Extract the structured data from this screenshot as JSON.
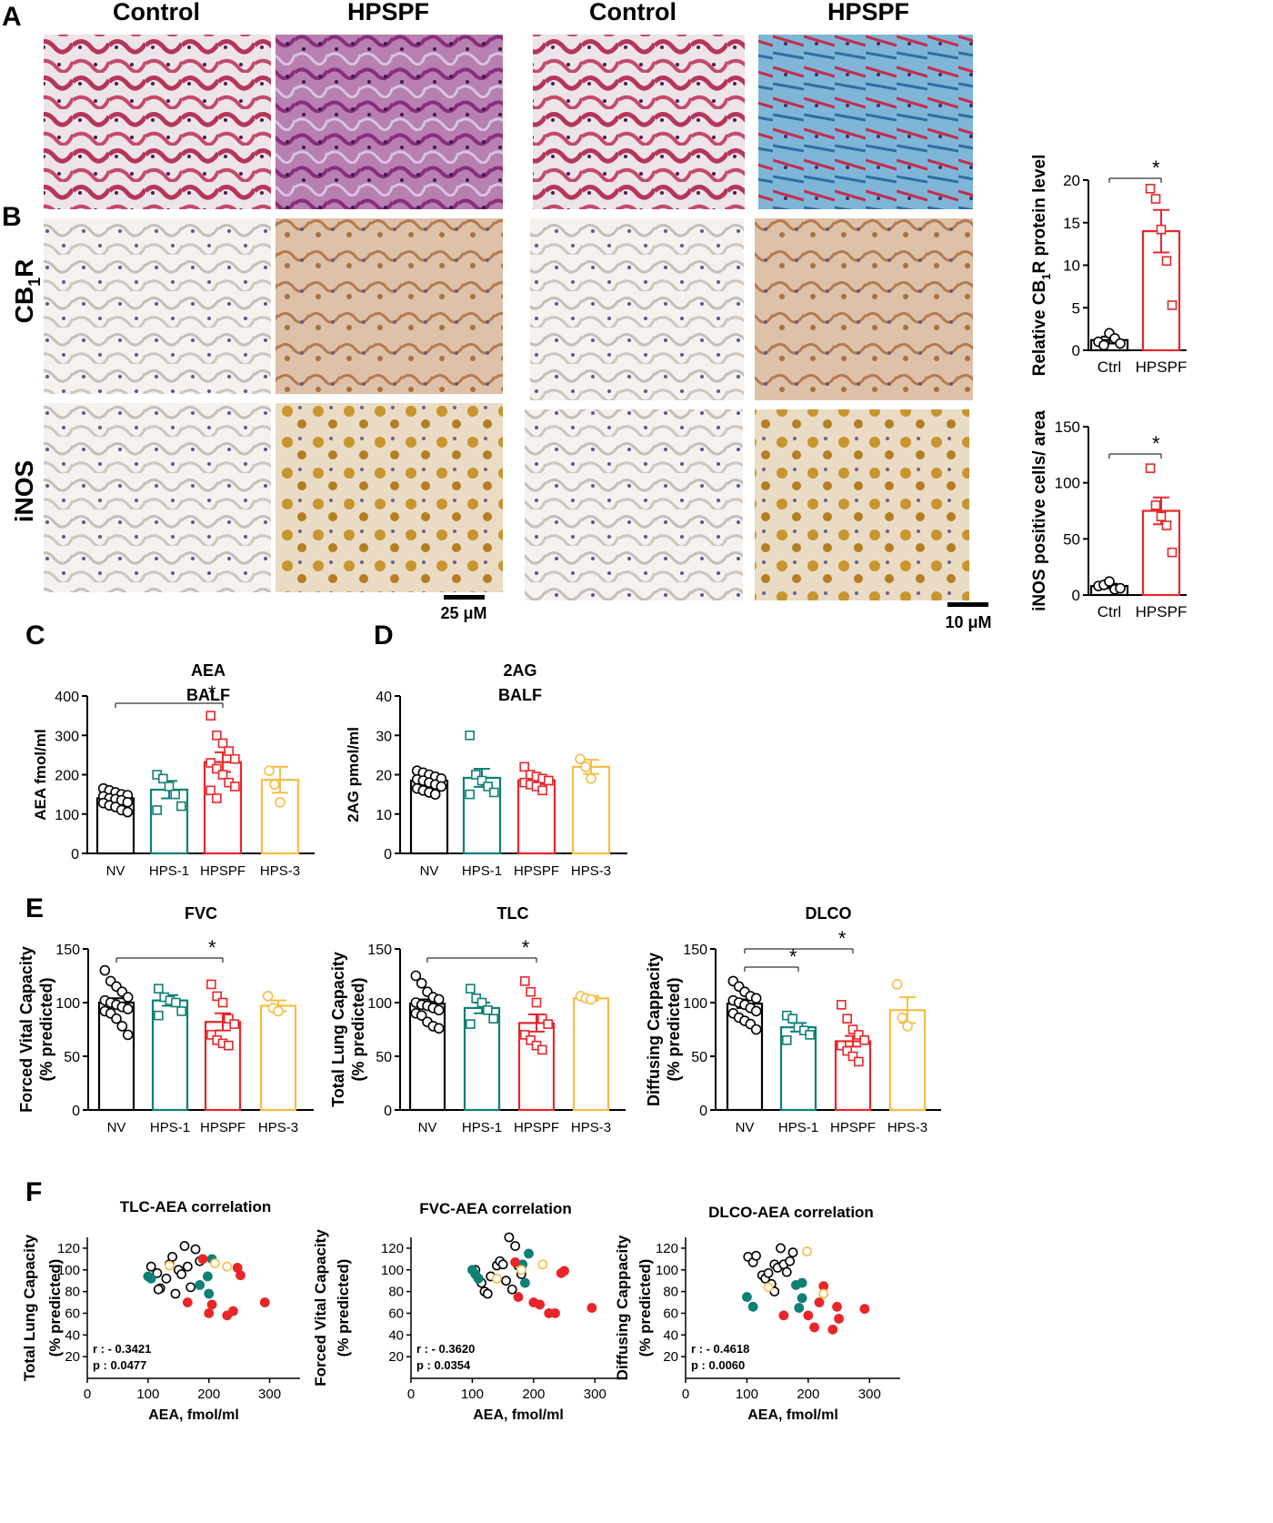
{
  "colors": {
    "NV": "#000000",
    "HPS-1": "#0e8076",
    "HPSPF": "#e8262a",
    "HPS-3": "#f6bd45",
    "HPSPF_sig": "#e8262a"
  },
  "panelA": {
    "letter": "A",
    "col_headers": [
      "Control",
      "HPSPF",
      "Control",
      "HPSPF"
    ],
    "scale_bars": [
      "25 μM",
      "10 μM"
    ]
  },
  "panelB": {
    "letter": "B",
    "rows": [
      "CB",
      "iNOS"
    ],
    "cb_sub": "1",
    "cb_suffix": "R"
  },
  "chart_data": [
    {
      "id": "cb1r",
      "type": "bar",
      "ylabel": "Relative CB1R protein level",
      "categories": [
        "Ctrl",
        "HPSPF"
      ],
      "ylim": [
        0,
        20
      ],
      "yticks": [
        0,
        5,
        10,
        15,
        20
      ],
      "values": [
        1.2,
        14.0
      ],
      "sem": [
        0.4,
        2.5
      ],
      "points": [
        [
          1.0,
          0.6,
          2.0,
          1.4,
          0.8
        ],
        [
          19.0,
          17.8,
          14.2,
          10.5,
          5.3
        ]
      ],
      "significance": [
        {
          "from": 0,
          "to": 1,
          "label": "*"
        }
      ]
    },
    {
      "id": "inos",
      "type": "bar",
      "ylabel": "iNOS positive cells/ area",
      "categories": [
        "Ctrl",
        "HPSPF"
      ],
      "ylim": [
        0,
        150
      ],
      "yticks": [
        0,
        50,
        100,
        150
      ],
      "values": [
        8,
        75
      ],
      "sem": [
        2,
        12
      ],
      "points": [
        [
          8,
          9,
          12,
          5,
          6
        ],
        [
          113,
          80,
          70,
          62,
          38
        ]
      ],
      "significance": [
        {
          "from": 0,
          "to": 1,
          "label": "*"
        }
      ]
    },
    {
      "id": "aea",
      "type": "bar",
      "letter": "C",
      "title": [
        "AEA",
        "BALF"
      ],
      "ylabel": "AEA fmol/ml",
      "categories": [
        "NV",
        "HPS-1",
        "HPSPF",
        "HPS-3"
      ],
      "ylim": [
        0,
        400
      ],
      "yticks": [
        0,
        100,
        200,
        300,
        400
      ],
      "values": [
        140,
        162,
        232,
        187
      ],
      "sem": [
        7,
        22,
        25,
        33
      ],
      "points": [
        [
          165,
          160,
          155,
          150,
          148,
          145,
          140,
          138,
          135,
          130,
          128,
          122,
          118,
          110,
          105
        ],
        [
          200,
          190,
          170,
          150,
          120,
          110
        ],
        [
          350,
          300,
          280,
          260,
          240,
          230,
          215,
          200,
          180,
          170,
          160,
          140
        ],
        [
          210,
          175,
          130
        ]
      ],
      "significance": [
        {
          "from": 0,
          "to": 2,
          "label": "*"
        }
      ]
    },
    {
      "id": "2ag",
      "type": "bar",
      "letter": "D",
      "title": [
        "2AG",
        "BALF"
      ],
      "ylabel": "2AG pmol/ml",
      "categories": [
        "NV",
        "HPS-1",
        "HPSPF",
        "HPS-3"
      ],
      "ylim": [
        0,
        40
      ],
      "yticks": [
        0,
        10,
        20,
        30,
        40
      ],
      "values": [
        18.5,
        19.2,
        18.6,
        22.0
      ],
      "sem": [
        0.8,
        2.3,
        1.0,
        1.8
      ],
      "points": [
        [
          21,
          20.5,
          20,
          19.5,
          19,
          18.8,
          18.5,
          18,
          17.5,
          17,
          16.5,
          16,
          15.5,
          15
        ],
        [
          30,
          20,
          18.5,
          17,
          15.5,
          15
        ],
        [
          22,
          20,
          19.5,
          19,
          18.5,
          18,
          17.5,
          17,
          16
        ],
        [
          24,
          22,
          19
        ]
      ],
      "significance": []
    },
    {
      "id": "fvc",
      "type": "bar",
      "letter": "E",
      "title": [
        "FVC"
      ],
      "ylabel": [
        "Forced Vital Capacity",
        "(% predicted)"
      ],
      "categories": [
        "NV",
        "HPS-1",
        "HPSPF",
        "HPS-3"
      ],
      "ylim": [
        0,
        150
      ],
      "yticks": [
        0,
        50,
        100,
        150
      ],
      "values": [
        100,
        102,
        82,
        97
      ],
      "sem": [
        4,
        5,
        8,
        5
      ],
      "points": [
        [
          130,
          120,
          115,
          110,
          105,
          102,
          100,
          98,
          96,
          94,
          92,
          90,
          85,
          78,
          70
        ],
        [
          113,
          105,
          102,
          100,
          92,
          88
        ],
        [
          117,
          106,
          100,
          85,
          80,
          70,
          65,
          62,
          60
        ],
        [
          106,
          95,
          92
        ]
      ],
      "significance": [
        {
          "from": 0,
          "to": 2,
          "label": "*"
        }
      ]
    },
    {
      "id": "tlc",
      "type": "bar",
      "title": [
        "TLC"
      ],
      "ylabel": [
        "Total Lung Capacity",
        "(% predicted)"
      ],
      "categories": [
        "NV",
        "HPS-1",
        "HPSPF",
        "HPS-3"
      ],
      "ylim": [
        0,
        150
      ],
      "yticks": [
        0,
        50,
        100,
        150
      ],
      "values": [
        99,
        95,
        81,
        104
      ],
      "sem": [
        4,
        5,
        8,
        2
      ],
      "points": [
        [
          125,
          118,
          110,
          105,
          103,
          100,
          98,
          97,
          95,
          93,
          90,
          88,
          82,
          78,
          76
        ],
        [
          113,
          104,
          100,
          93,
          85,
          80
        ],
        [
          120,
          110,
          100,
          85,
          80,
          70,
          65,
          60,
          56
        ],
        [
          106,
          104,
          103
        ]
      ],
      "significance": [
        {
          "from": 0,
          "to": 2,
          "label": "*"
        }
      ]
    },
    {
      "id": "dlco",
      "type": "bar",
      "title": [
        "DLCO"
      ],
      "ylabel": [
        "Diffusing Cappacity",
        "(% predicted)"
      ],
      "categories": [
        "NV",
        "HPS-1",
        "HPSPF",
        "HPS-3"
      ],
      "ylim": [
        0,
        150
      ],
      "yticks": [
        0,
        50,
        100,
        150
      ],
      "values": [
        99,
        77,
        64,
        93
      ],
      "sem": [
        4,
        4,
        5,
        12
      ],
      "points": [
        [
          120,
          115,
          110,
          106,
          104,
          102,
          100,
          98,
          95,
          92,
          90,
          86,
          83,
          80,
          75
        ],
        [
          88,
          85,
          77,
          74,
          70,
          65
        ],
        [
          98,
          85,
          75,
          70,
          65,
          60,
          55,
          50,
          45
        ],
        [
          117,
          86,
          78
        ]
      ],
      "significance": [
        {
          "from": 0,
          "to": 1,
          "label": "*"
        },
        {
          "from": 0,
          "to": 2,
          "label": "*"
        }
      ]
    },
    {
      "id": "tlc_aea",
      "type": "scatter",
      "letter": "F",
      "title": [
        "TLC-AEA correlation"
      ],
      "ylabel": [
        "Total Lung Capacity",
        "(% predicted)"
      ],
      "xlabel": "AEA, fmol/ml",
      "xlim": [
        0,
        350
      ],
      "xticks": [
        0,
        100,
        200,
        300
      ],
      "ylim": [
        0,
        130
      ],
      "yticks": [
        20,
        40,
        60,
        80,
        100,
        120
      ],
      "annotation": [
        "r : - 0.3421",
        "p : 0.0477"
      ],
      "points": [
        {
          "g": "NV",
          "x": 105,
          "y": 103
        },
        {
          "g": "NV",
          "x": 115,
          "y": 97
        },
        {
          "g": "NV",
          "x": 120,
          "y": 83
        },
        {
          "g": "NV",
          "x": 130,
          "y": 92
        },
        {
          "g": "NV",
          "x": 135,
          "y": 105
        },
        {
          "g": "NV",
          "x": 140,
          "y": 112
        },
        {
          "g": "NV",
          "x": 150,
          "y": 100
        },
        {
          "g": "NV",
          "x": 155,
          "y": 96
        },
        {
          "g": "NV",
          "x": 160,
          "y": 122
        },
        {
          "g": "NV",
          "x": 165,
          "y": 103
        },
        {
          "g": "NV",
          "x": 170,
          "y": 84
        },
        {
          "g": "NV",
          "x": 178,
          "y": 119
        },
        {
          "g": "NV",
          "x": 185,
          "y": 108
        },
        {
          "g": "NV",
          "x": 117,
          "y": 82
        },
        {
          "g": "NV",
          "x": 145,
          "y": 78
        },
        {
          "g": "HPS-1",
          "x": 100,
          "y": 94
        },
        {
          "g": "HPS-1",
          "x": 105,
          "y": 92
        },
        {
          "g": "HPS-1",
          "x": 185,
          "y": 86
        },
        {
          "g": "HPS-1",
          "x": 198,
          "y": 94
        },
        {
          "g": "HPS-1",
          "x": 200,
          "y": 78
        },
        {
          "g": "HPS-1",
          "x": 205,
          "y": 110
        },
        {
          "g": "HPSPF",
          "x": 165,
          "y": 70
        },
        {
          "g": "HPSPF",
          "x": 190,
          "y": 110
        },
        {
          "g": "HPSPF",
          "x": 200,
          "y": 60
        },
        {
          "g": "HPSPF",
          "x": 205,
          "y": 68
        },
        {
          "g": "HPSPF",
          "x": 230,
          "y": 58
        },
        {
          "g": "HPSPF",
          "x": 240,
          "y": 62
        },
        {
          "g": "HPSPF",
          "x": 247,
          "y": 102
        },
        {
          "g": "HPSPF",
          "x": 252,
          "y": 95
        },
        {
          "g": "HPSPF",
          "x": 292,
          "y": 70
        },
        {
          "g": "HPS-3",
          "x": 135,
          "y": 104
        },
        {
          "g": "HPS-3",
          "x": 210,
          "y": 106
        },
        {
          "g": "HPS-3",
          "x": 230,
          "y": 103
        }
      ]
    },
    {
      "id": "fvc_aea",
      "type": "scatter",
      "title": [
        "FVC-AEA correlation"
      ],
      "ylabel": [
        "Forced Vital Capacity",
        "(% predicted)"
      ],
      "xlabel": "AEA, fmol/ml",
      "xlim": [
        0,
        350
      ],
      "xticks": [
        0,
        100,
        200,
        300
      ],
      "ylim": [
        0,
        130
      ],
      "yticks": [
        20,
        40,
        60,
        80,
        100,
        120
      ],
      "annotation": [
        "r : - 0.3620",
        "p : 0.0354"
      ],
      "points": [
        {
          "g": "NV",
          "x": 105,
          "y": 100
        },
        {
          "g": "NV",
          "x": 110,
          "y": 92
        },
        {
          "g": "NV",
          "x": 115,
          "y": 88
        },
        {
          "g": "NV",
          "x": 120,
          "y": 80
        },
        {
          "g": "NV",
          "x": 130,
          "y": 94
        },
        {
          "g": "NV",
          "x": 140,
          "y": 104
        },
        {
          "g": "NV",
          "x": 145,
          "y": 108
        },
        {
          "g": "NV",
          "x": 150,
          "y": 105
        },
        {
          "g": "NV",
          "x": 155,
          "y": 90
        },
        {
          "g": "NV",
          "x": 160,
          "y": 130
        },
        {
          "g": "NV",
          "x": 165,
          "y": 82
        },
        {
          "g": "NV",
          "x": 170,
          "y": 122
        },
        {
          "g": "NV",
          "x": 175,
          "y": 104
        },
        {
          "g": "NV",
          "x": 180,
          "y": 96
        },
        {
          "g": "NV",
          "x": 125,
          "y": 78
        },
        {
          "g": "HPS-1",
          "x": 100,
          "y": 100
        },
        {
          "g": "HPS-1",
          "x": 105,
          "y": 96
        },
        {
          "g": "HPS-1",
          "x": 110,
          "y": 92
        },
        {
          "g": "HPS-1",
          "x": 182,
          "y": 105
        },
        {
          "g": "HPS-1",
          "x": 186,
          "y": 88
        },
        {
          "g": "HPS-1",
          "x": 192,
          "y": 115
        },
        {
          "g": "HPSPF",
          "x": 170,
          "y": 107
        },
        {
          "g": "HPSPF",
          "x": 175,
          "y": 75
        },
        {
          "g": "HPSPF",
          "x": 200,
          "y": 70
        },
        {
          "g": "HPSPF",
          "x": 210,
          "y": 68
        },
        {
          "g": "HPSPF",
          "x": 225,
          "y": 60
        },
        {
          "g": "HPSPF",
          "x": 235,
          "y": 60
        },
        {
          "g": "HPSPF",
          "x": 245,
          "y": 97
        },
        {
          "g": "HPSPF",
          "x": 250,
          "y": 99
        },
        {
          "g": "HPSPF",
          "x": 295,
          "y": 65
        },
        {
          "g": "HPS-3",
          "x": 140,
          "y": 92
        },
        {
          "g": "HPS-3",
          "x": 215,
          "y": 105
        },
        {
          "g": "HPS-3",
          "x": 180,
          "y": 100
        }
      ]
    },
    {
      "id": "dlco_aea",
      "type": "scatter",
      "title": [
        "DLCO-AEA correlation"
      ],
      "ylabel": [
        "Diffusing Cappacity",
        "(% predicted)"
      ],
      "xlabel": "AEA, fmol/ml",
      "xlim": [
        0,
        350
      ],
      "xticks": [
        0,
        100,
        200,
        300
      ],
      "ylim": [
        0,
        130
      ],
      "yticks": [
        20,
        40,
        60,
        80,
        100,
        120
      ],
      "annotation": [
        "r : - 0.4618",
        "p : 0.0060"
      ],
      "points": [
        {
          "g": "NV",
          "x": 102,
          "y": 112
        },
        {
          "g": "NV",
          "x": 110,
          "y": 107
        },
        {
          "g": "NV",
          "x": 115,
          "y": 113
        },
        {
          "g": "NV",
          "x": 125,
          "y": 95
        },
        {
          "g": "NV",
          "x": 130,
          "y": 92
        },
        {
          "g": "NV",
          "x": 140,
          "y": 87
        },
        {
          "g": "NV",
          "x": 145,
          "y": 105
        },
        {
          "g": "NV",
          "x": 150,
          "y": 102
        },
        {
          "g": "NV",
          "x": 155,
          "y": 120
        },
        {
          "g": "NV",
          "x": 160,
          "y": 105
        },
        {
          "g": "NV",
          "x": 165,
          "y": 98
        },
        {
          "g": "NV",
          "x": 170,
          "y": 108
        },
        {
          "g": "NV",
          "x": 175,
          "y": 116
        },
        {
          "g": "NV",
          "x": 145,
          "y": 80
        },
        {
          "g": "NV",
          "x": 135,
          "y": 97
        },
        {
          "g": "HPS-1",
          "x": 100,
          "y": 75
        },
        {
          "g": "HPS-1",
          "x": 110,
          "y": 66
        },
        {
          "g": "HPS-1",
          "x": 180,
          "y": 86
        },
        {
          "g": "HPS-1",
          "x": 190,
          "y": 88
        },
        {
          "g": "HPS-1",
          "x": 190,
          "y": 74
        },
        {
          "g": "HPS-1",
          "x": 185,
          "y": 65
        },
        {
          "g": "HPSPF",
          "x": 160,
          "y": 58
        },
        {
          "g": "HPSPF",
          "x": 200,
          "y": 58
        },
        {
          "g": "HPSPF",
          "x": 210,
          "y": 47
        },
        {
          "g": "HPSPF",
          "x": 218,
          "y": 70
        },
        {
          "g": "HPSPF",
          "x": 225,
          "y": 85
        },
        {
          "g": "HPSPF",
          "x": 240,
          "y": 45
        },
        {
          "g": "HPSPF",
          "x": 247,
          "y": 66
        },
        {
          "g": "HPSPF",
          "x": 250,
          "y": 55
        },
        {
          "g": "HPSPF",
          "x": 292,
          "y": 64
        },
        {
          "g": "HPS-3",
          "x": 135,
          "y": 84
        },
        {
          "g": "HPS-3",
          "x": 198,
          "y": 117
        },
        {
          "g": "HPS-3",
          "x": 225,
          "y": 78
        }
      ]
    }
  ]
}
